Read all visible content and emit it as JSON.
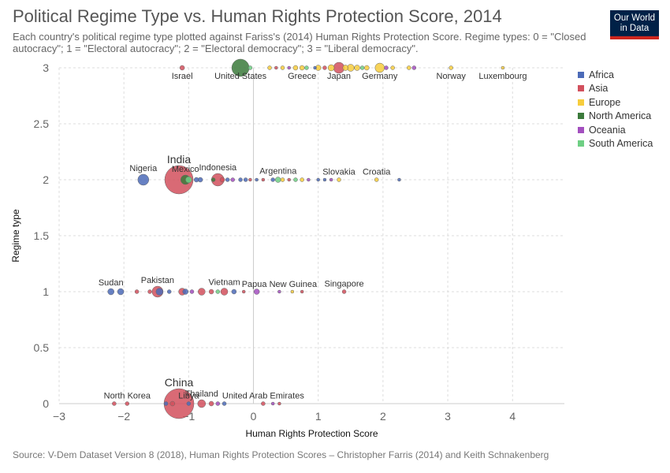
{
  "header": {
    "title": "Political Regime Type vs. Human Rights Protection Score, 2014",
    "subtitle": "Each country's political regime type plotted against Fariss's (2014) Human Rights Protection Score. Regime types: 0 = \"Closed autocracy\"; 1 = \"Electoral autocracy\"; 2 = \"Electoral democracy\"; 3 = \"Liberal democracy\".",
    "logo_line1": "Our World",
    "logo_line2": "in Data"
  },
  "footer": {
    "source": "Source: V-Dem Dataset Version 8 (2018), Human Rights Protection Scores – Christopher Farris (2014) and Keith Schnakenberg"
  },
  "colors": {
    "Africa": "#4c6bb8",
    "Asia": "#d2505d",
    "Europe": "#f7cd3d",
    "North America": "#3b7a3b",
    "Oceania": "#a34fbf",
    "South America": "#6ecf84"
  },
  "chart_data": {
    "type": "scatter",
    "xlabel": "Human Rights Protection Score",
    "ylabel": "Regime type",
    "xlim": [
      -3.0,
      4.8
    ],
    "ylim": [
      0,
      3
    ],
    "xticks": [
      "-3",
      "-2",
      "-1",
      "0",
      "1",
      "2",
      "3",
      "4"
    ],
    "yticks": [
      "0",
      "0.5",
      "1",
      "1.5",
      "2",
      "2.5",
      "3"
    ],
    "grid": true,
    "legend_position": "right",
    "legend": [
      "Africa",
      "Asia",
      "Europe",
      "North America",
      "Oceania",
      "South America"
    ],
    "points": [
      {
        "name": "Israel",
        "x": -1.1,
        "y": 3,
        "region": "Asia",
        "size": 6
      },
      {
        "name": "United States",
        "x": -0.2,
        "y": 3,
        "region": "North America",
        "size": 22
      },
      {
        "name": "",
        "x": -0.05,
        "y": 3,
        "region": "South America",
        "size": 5
      },
      {
        "name": "",
        "x": 0.25,
        "y": 3,
        "region": "Europe",
        "size": 5
      },
      {
        "name": "",
        "x": 0.35,
        "y": 3,
        "region": "Asia",
        "size": 4
      },
      {
        "name": "",
        "x": 0.45,
        "y": 3,
        "region": "Europe",
        "size": 5
      },
      {
        "name": "",
        "x": 0.55,
        "y": 3,
        "region": "Oceania",
        "size": 4
      },
      {
        "name": "",
        "x": 0.65,
        "y": 3,
        "region": "Europe",
        "size": 6
      },
      {
        "name": "Greece",
        "x": 0.75,
        "y": 3,
        "region": "Europe",
        "size": 6
      },
      {
        "name": "",
        "x": 0.82,
        "y": 3,
        "region": "South America",
        "size": 5
      },
      {
        "name": "",
        "x": 0.95,
        "y": 3,
        "region": "Africa",
        "size": 4
      },
      {
        "name": "",
        "x": 1.0,
        "y": 3,
        "region": "Europe",
        "size": 7
      },
      {
        "name": "",
        "x": 1.1,
        "y": 3,
        "region": "Asia",
        "size": 5
      },
      {
        "name": "",
        "x": 1.2,
        "y": 3,
        "region": "Europe",
        "size": 8
      },
      {
        "name": "Japan",
        "x": 1.32,
        "y": 3,
        "region": "Asia",
        "size": 14
      },
      {
        "name": "",
        "x": 1.42,
        "y": 3,
        "region": "Europe",
        "size": 7
      },
      {
        "name": "",
        "x": 1.5,
        "y": 3,
        "region": "Europe",
        "size": 9
      },
      {
        "name": "",
        "x": 1.6,
        "y": 3,
        "region": "Europe",
        "size": 7
      },
      {
        "name": "",
        "x": 1.68,
        "y": 3,
        "region": "South America",
        "size": 5
      },
      {
        "name": "",
        "x": 1.75,
        "y": 3,
        "region": "Europe",
        "size": 6
      },
      {
        "name": "Germany",
        "x": 1.95,
        "y": 3,
        "region": "Europe",
        "size": 12
      },
      {
        "name": "",
        "x": 2.05,
        "y": 3,
        "region": "Oceania",
        "size": 5
      },
      {
        "name": "",
        "x": 2.15,
        "y": 3,
        "region": "Europe",
        "size": 5
      },
      {
        "name": "",
        "x": 2.4,
        "y": 3,
        "region": "Europe",
        "size": 5
      },
      {
        "name": "",
        "x": 2.48,
        "y": 3,
        "region": "Oceania",
        "size": 5
      },
      {
        "name": "Norway",
        "x": 3.05,
        "y": 3,
        "region": "Europe",
        "size": 5
      },
      {
        "name": "Luxembourg",
        "x": 3.85,
        "y": 3,
        "region": "Europe",
        "size": 4
      },
      {
        "name": "Nigeria",
        "x": -1.7,
        "y": 2,
        "region": "Africa",
        "size": 14
      },
      {
        "name": "India",
        "x": -1.15,
        "y": 2,
        "region": "Asia",
        "size": 36
      },
      {
        "name": "Mexico",
        "x": -1.05,
        "y": 2,
        "region": "North America",
        "size": 12
      },
      {
        "name": "",
        "x": -1.0,
        "y": 2,
        "region": "South America",
        "size": 8
      },
      {
        "name": "",
        "x": -0.88,
        "y": 2,
        "region": "Africa",
        "size": 6
      },
      {
        "name": "",
        "x": -0.82,
        "y": 2,
        "region": "Africa",
        "size": 6
      },
      {
        "name": "Indonesia",
        "x": -0.55,
        "y": 2,
        "region": "Asia",
        "size": 16
      },
      {
        "name": "",
        "x": -0.62,
        "y": 2,
        "region": "North America",
        "size": 5
      },
      {
        "name": "",
        "x": -0.48,
        "y": 2,
        "region": "Asia",
        "size": 6
      },
      {
        "name": "",
        "x": -0.4,
        "y": 2,
        "region": "Africa",
        "size": 5
      },
      {
        "name": "",
        "x": -0.32,
        "y": 2,
        "region": "Oceania",
        "size": 5
      },
      {
        "name": "",
        "x": -0.2,
        "y": 2,
        "region": "Africa",
        "size": 5
      },
      {
        "name": "",
        "x": -0.12,
        "y": 2,
        "region": "Africa",
        "size": 5
      },
      {
        "name": "",
        "x": -0.05,
        "y": 2,
        "region": "Asia",
        "size": 4
      },
      {
        "name": "",
        "x": 0.05,
        "y": 2,
        "region": "Africa",
        "size": 4
      },
      {
        "name": "",
        "x": 0.15,
        "y": 2,
        "region": "Asia",
        "size": 4
      },
      {
        "name": "",
        "x": 0.3,
        "y": 2,
        "region": "Africa",
        "size": 5
      },
      {
        "name": "Argentina",
        "x": 0.38,
        "y": 2,
        "region": "South America",
        "size": 7
      },
      {
        "name": "",
        "x": 0.45,
        "y": 2,
        "region": "Europe",
        "size": 5
      },
      {
        "name": "",
        "x": 0.55,
        "y": 2,
        "region": "Asia",
        "size": 4
      },
      {
        "name": "",
        "x": 0.65,
        "y": 2,
        "region": "South America",
        "size": 5
      },
      {
        "name": "",
        "x": 0.75,
        "y": 2,
        "region": "Europe",
        "size": 5
      },
      {
        "name": "",
        "x": 0.85,
        "y": 2,
        "region": "Oceania",
        "size": 4
      },
      {
        "name": "",
        "x": 1.0,
        "y": 2,
        "region": "Africa",
        "size": 4
      },
      {
        "name": "",
        "x": 1.1,
        "y": 2,
        "region": "Africa",
        "size": 4
      },
      {
        "name": "",
        "x": 1.2,
        "y": 2,
        "region": "Oceania",
        "size": 4
      },
      {
        "name": "Slovakia",
        "x": 1.32,
        "y": 2,
        "region": "Europe",
        "size": 5
      },
      {
        "name": "Croatia",
        "x": 1.9,
        "y": 2,
        "region": "Europe",
        "size": 5
      },
      {
        "name": "",
        "x": 2.25,
        "y": 2,
        "region": "Africa",
        "size": 4
      },
      {
        "name": "Sudan",
        "x": -2.2,
        "y": 1,
        "region": "Africa",
        "size": 8
      },
      {
        "name": "",
        "x": -2.05,
        "y": 1,
        "region": "Africa",
        "size": 8
      },
      {
        "name": "",
        "x": -1.8,
        "y": 1,
        "region": "Asia",
        "size": 5
      },
      {
        "name": "",
        "x": -1.6,
        "y": 1,
        "region": "Asia",
        "size": 5
      },
      {
        "name": "Pakistan",
        "x": -1.48,
        "y": 1,
        "region": "Asia",
        "size": 14
      },
      {
        "name": "",
        "x": -1.45,
        "y": 1,
        "region": "Africa",
        "size": 9
      },
      {
        "name": "",
        "x": -1.3,
        "y": 1,
        "region": "Africa",
        "size": 5
      },
      {
        "name": "",
        "x": -1.1,
        "y": 1,
        "region": "Asia",
        "size": 9
      },
      {
        "name": "",
        "x": -1.05,
        "y": 1,
        "region": "Africa",
        "size": 7
      },
      {
        "name": "",
        "x": -0.95,
        "y": 1,
        "region": "Oceania",
        "size": 5
      },
      {
        "name": "",
        "x": -0.8,
        "y": 1,
        "region": "Asia",
        "size": 9
      },
      {
        "name": "",
        "x": -0.65,
        "y": 1,
        "region": "Asia",
        "size": 6
      },
      {
        "name": "",
        "x": -0.55,
        "y": 1,
        "region": "South America",
        "size": 5
      },
      {
        "name": "Vietnam",
        "x": -0.45,
        "y": 1,
        "region": "Asia",
        "size": 9
      },
      {
        "name": "",
        "x": -0.3,
        "y": 1,
        "region": "Africa",
        "size": 6
      },
      {
        "name": "",
        "x": -0.15,
        "y": 1,
        "region": "Asia",
        "size": 4
      },
      {
        "name": "",
        "x": 0.05,
        "y": 1,
        "region": "Oceania",
        "size": 7
      },
      {
        "name": "Papua New Guinea",
        "x": 0.4,
        "y": 1,
        "region": "Oceania",
        "size": 4
      },
      {
        "name": "",
        "x": 0.6,
        "y": 1,
        "region": "Europe",
        "size": 4
      },
      {
        "name": "",
        "x": 0.75,
        "y": 1,
        "region": "Asia",
        "size": 4
      },
      {
        "name": "Singapore",
        "x": 1.4,
        "y": 1,
        "region": "Asia",
        "size": 5
      },
      {
        "name": "",
        "x": -2.15,
        "y": 0,
        "region": "Asia",
        "size": 5
      },
      {
        "name": "North Korea",
        "x": -1.95,
        "y": 0,
        "region": "Asia",
        "size": 5
      },
      {
        "name": "China",
        "x": -1.15,
        "y": 0,
        "region": "Asia",
        "size": 38
      },
      {
        "name": "",
        "x": -1.35,
        "y": 0,
        "region": "Africa",
        "size": 5
      },
      {
        "name": "",
        "x": -1.25,
        "y": 0,
        "region": "Asia",
        "size": 6
      },
      {
        "name": "Libya",
        "x": -1.0,
        "y": 0,
        "region": "Africa",
        "size": 5
      },
      {
        "name": "Thailand",
        "x": -0.8,
        "y": 0,
        "region": "Asia",
        "size": 10
      },
      {
        "name": "",
        "x": -0.65,
        "y": 0,
        "region": "Asia",
        "size": 6
      },
      {
        "name": "",
        "x": -0.55,
        "y": 0,
        "region": "Oceania",
        "size": 5
      },
      {
        "name": "",
        "x": -0.45,
        "y": 0,
        "region": "Africa",
        "size": 5
      },
      {
        "name": "United Arab Emirates",
        "x": 0.15,
        "y": 0,
        "region": "Asia",
        "size": 5
      },
      {
        "name": "",
        "x": 0.3,
        "y": 0,
        "region": "Oceania",
        "size": 4
      },
      {
        "name": "",
        "x": 0.4,
        "y": 0,
        "region": "Asia",
        "size": 4
      }
    ]
  }
}
